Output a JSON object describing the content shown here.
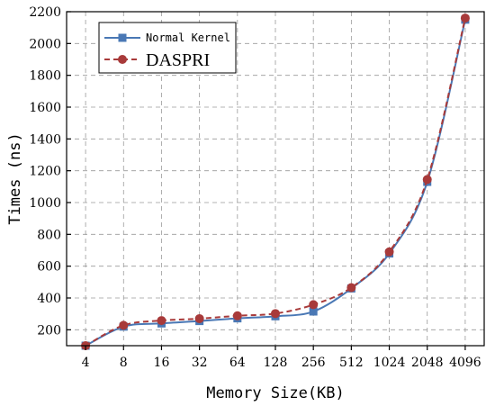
{
  "chart_data": {
    "type": "line",
    "categories": [
      "4",
      "8",
      "16",
      "32",
      "64",
      "128",
      "256",
      "512",
      "1024",
      "2048",
      "4096"
    ],
    "series": [
      {
        "name": "Normal Kernel",
        "color": "#4a78b5",
        "marker": "square",
        "line_style": "solid",
        "values": [
          100,
          220,
          240,
          255,
          272,
          285,
          315,
          460,
          680,
          1130,
          2150
        ]
      },
      {
        "name": "DASPRI",
        "color": "#a83a3a",
        "marker": "circle",
        "line_style": "dashed",
        "values": [
          100,
          228,
          258,
          270,
          288,
          302,
          358,
          465,
          690,
          1145,
          2160
        ]
      }
    ],
    "xlabel": "Memory Size(KB)",
    "ylabel": "Times (ns)",
    "ylim": [
      100,
      2200
    ],
    "yticks": [
      200,
      400,
      600,
      800,
      1000,
      1200,
      1400,
      1600,
      1800,
      2000,
      2200
    ],
    "grid": true,
    "legend_position": "top-left"
  }
}
